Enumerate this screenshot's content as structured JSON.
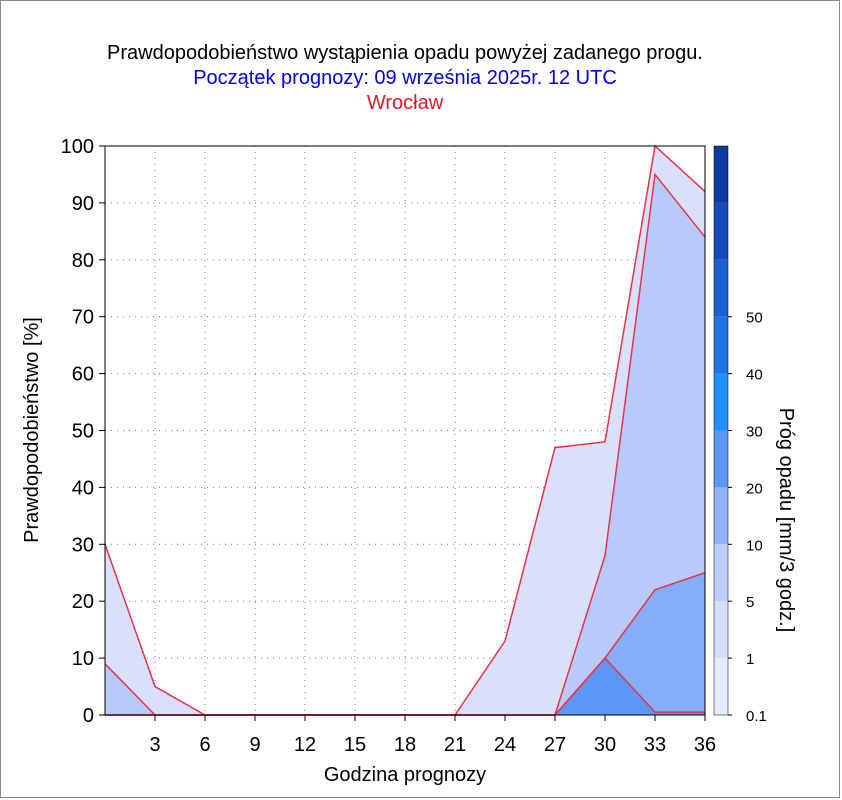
{
  "chart_data": {
    "type": "area",
    "title": "Prawdopodobieństwo wystąpienia opadu powyżej zadanego progu.",
    "subtitle": "Początek prognozy: 09 września 2025r. 12 UTC",
    "location": "Wrocław",
    "xlabel": "Godzina prognozy",
    "ylabel": "Prawdopodobieństwo [%]",
    "xlim": [
      0,
      36
    ],
    "ylim": [
      0,
      100
    ],
    "x": [
      0,
      3,
      6,
      9,
      12,
      15,
      18,
      21,
      24,
      27,
      30,
      33,
      36
    ],
    "x_ticks": [
      3,
      6,
      9,
      12,
      15,
      18,
      21,
      24,
      27,
      30,
      33,
      36
    ],
    "y_ticks": [
      0,
      10,
      20,
      30,
      40,
      50,
      60,
      70,
      80,
      90,
      100
    ],
    "grid": true,
    "series": [
      {
        "threshold": "0.1",
        "color": "#d9e0fc",
        "values": [
          30,
          5,
          0,
          0,
          0,
          0,
          0,
          0,
          13,
          47,
          48,
          100,
          92
        ]
      },
      {
        "threshold": "1",
        "color": "#b8cafa",
        "values": [
          9,
          0,
          0,
          0,
          0,
          0,
          0,
          0,
          0,
          0,
          28,
          95,
          84
        ]
      },
      {
        "threshold": "5",
        "color": "#84aefc",
        "values": [
          0,
          0,
          0,
          0,
          0,
          0,
          0,
          0,
          0,
          0,
          10,
          22,
          25
        ]
      },
      {
        "threshold": "10",
        "color": "#5d97f5",
        "values": [
          0,
          0,
          0,
          0,
          0,
          0,
          0,
          0,
          0,
          0,
          10,
          0.5,
          0.5
        ]
      }
    ],
    "colorbar": {
      "label": "Próg opadu [mm/3 godz.]",
      "labels": [
        "0.1",
        "1",
        "5",
        "10",
        "20",
        "30",
        "40",
        "50"
      ],
      "colors": [
        "#e6ebfd",
        "#d5defb",
        "#bccdfa",
        "#8fb3f6",
        "#5d97f5",
        "#1e90ff",
        "#1f73e3",
        "#1c5ed3",
        "#164bbd",
        "#0f3aa0"
      ]
    }
  }
}
